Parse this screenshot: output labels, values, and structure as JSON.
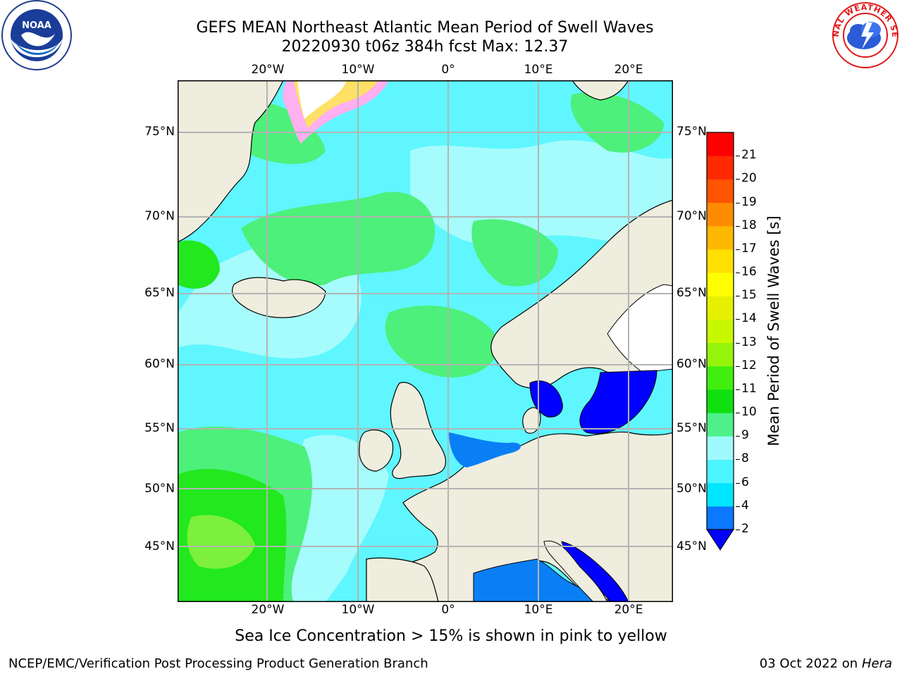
{
  "header": {
    "title_line1": "GEFS MEAN Northeast Atlantic Mean Period of Swell Waves",
    "title_line2": "20220930 t06z 384h fcst   Max: 12.37"
  },
  "logos": {
    "left": "NOAA",
    "right": "NATIONAL WEATHER SERVICE"
  },
  "map": {
    "lon_ticks": [
      "20°W",
      "10°W",
      "0°",
      "10°E",
      "20°E"
    ],
    "lat_ticks": [
      "75°N",
      "70°N",
      "65°N",
      "60°N",
      "55°N",
      "50°N",
      "45°N"
    ],
    "colors": {
      "land": "#efedde",
      "ocean_green": "#4cf07a",
      "ocean_cyan": "#5ff6ff",
      "ocean_light_cyan": "#a6fcfc",
      "ocean_deep_green": "#22e81e",
      "ocean_blue": "#0a7ff5",
      "ocean_dark_blue": "#0000ff",
      "ice_white": "#ffffff",
      "ice_pink": "#ff50ff",
      "grid": "#b4b4b4"
    }
  },
  "colorbar": {
    "label": "Mean Period of Swell Waves [s]",
    "levels": [
      "2",
      "4",
      "6",
      "8",
      "9",
      "10",
      "11",
      "12",
      "13",
      "14",
      "15",
      "16",
      "17",
      "18",
      "19",
      "20",
      "21"
    ],
    "colors": [
      "#0b78ff",
      "#00e6ff",
      "#4cf5ff",
      "#a0fafd",
      "#4df08a",
      "#10e010",
      "#40ee10",
      "#96f40a",
      "#c8f800",
      "#e6f000",
      "#ffff00",
      "#ffe000",
      "#ffb800",
      "#ff8c00",
      "#ff5400",
      "#ff2a00",
      "#ff0000"
    ],
    "extend_color": "#0000ff"
  },
  "caption": "Sea Ice Concentration > 15% is shown in pink to yellow",
  "footer": {
    "left": "NCEP/EMC/Verification Post Processing Product Generation Branch",
    "right_date": "03 Oct 2022 on ",
    "right_host": "Hera"
  }
}
